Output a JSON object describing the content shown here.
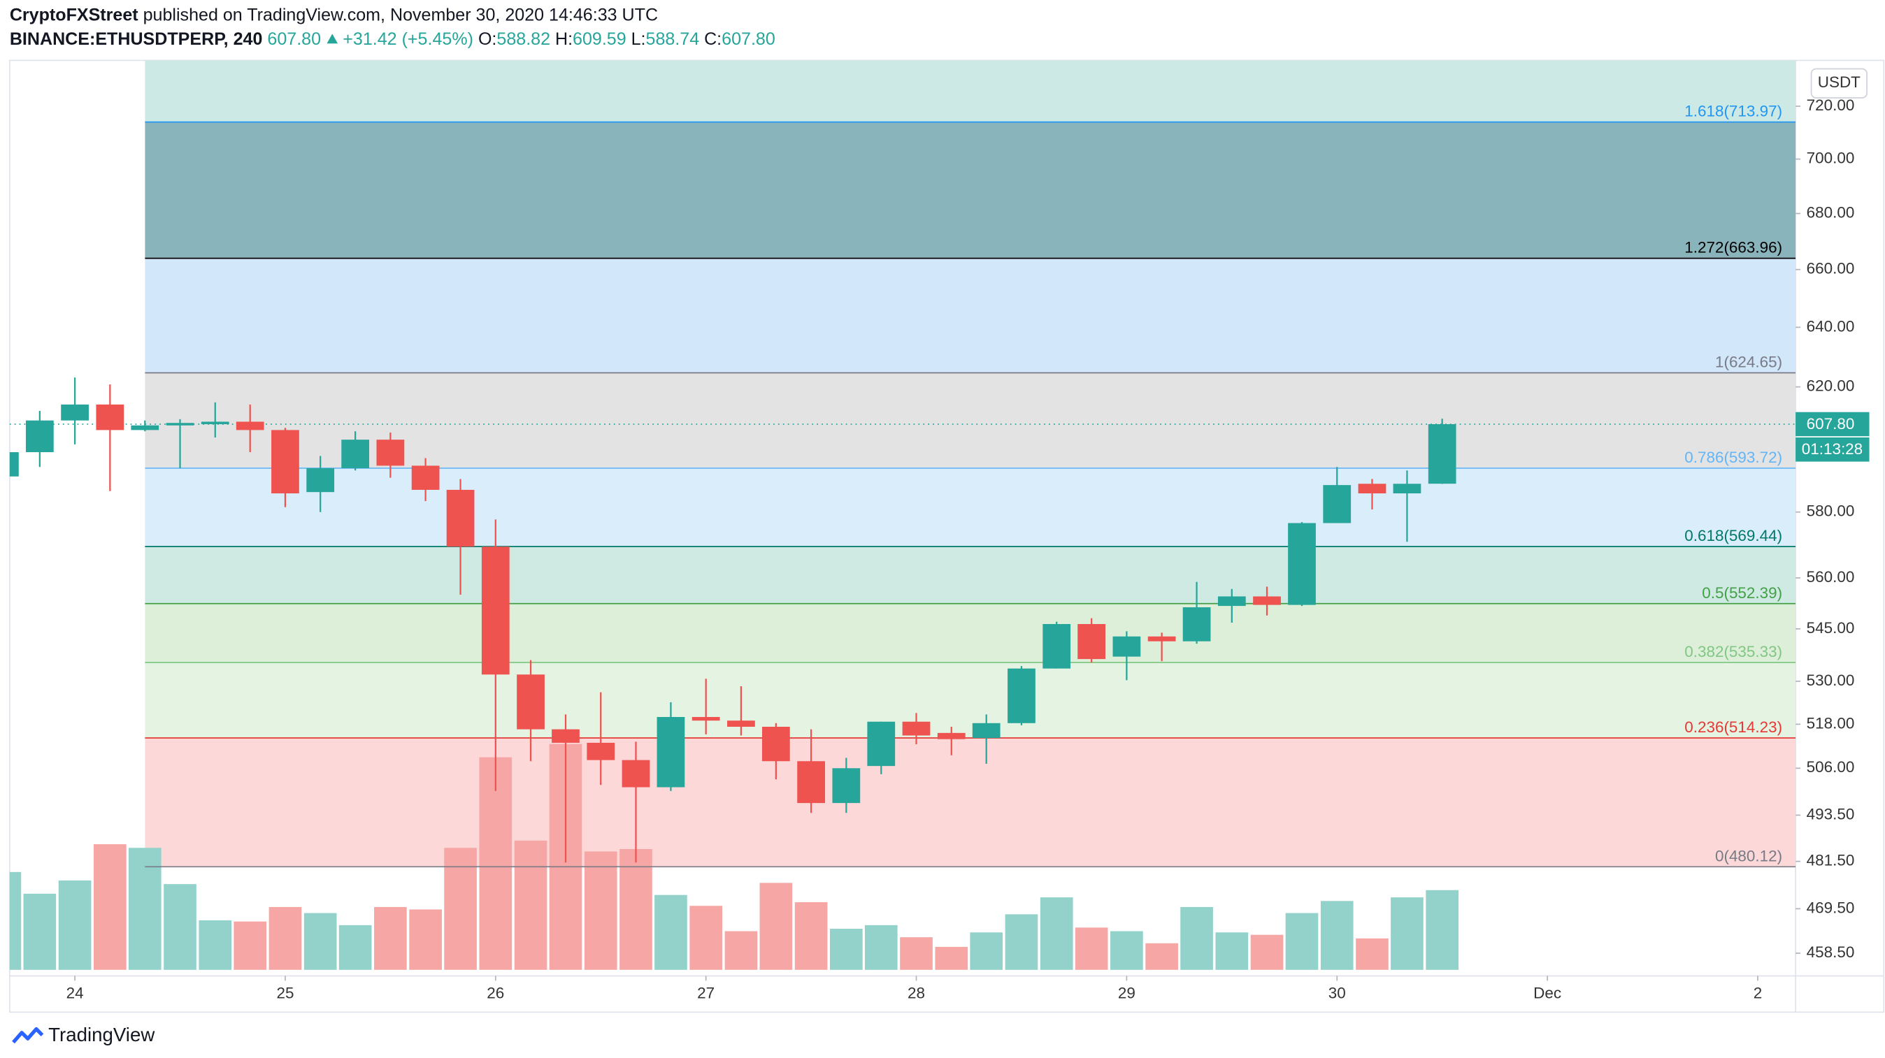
{
  "header": {
    "author": "CryptoFXStreet",
    "published": "published on TradingView.com, November 30, 2020 14:46:33 UTC",
    "symbol": "BINANCE:ETHUSDTPERP, 240",
    "last": "607.80",
    "change": "+31.42 (+5.45%)",
    "ohlc": [
      {
        "key": "O:",
        "value": "588.82"
      },
      {
        "key": "H:",
        "value": "609.59"
      },
      {
        "key": "L:",
        "value": "588.74"
      },
      {
        "key": "C:",
        "value": "607.80"
      }
    ]
  },
  "chart_data": {
    "type": "candlestick",
    "currency": "USDT",
    "countdown": "01:13:28",
    "x": [
      23.667,
      23.833,
      24,
      24.167,
      24.333,
      24.5,
      24.667,
      24.833,
      25,
      25.167,
      25.333,
      25.5,
      25.667,
      25.833,
      26,
      26.167,
      26.333,
      26.5,
      26.667,
      26.833,
      27,
      27.167,
      27.333,
      27.5,
      27.667,
      27.833,
      28,
      28.167,
      28.333,
      28.5,
      28.667,
      28.833,
      29,
      29.167,
      29.333,
      29.5,
      29.667,
      29.833,
      30,
      30.167,
      30.333,
      30.5
    ],
    "open": [
      591.1,
      598.8,
      609.0,
      614.2,
      605.9,
      607.4,
      607.8,
      608.6,
      605.9,
      586.2,
      593.7,
      602.8,
      594.5,
      586.9,
      569.4,
      531.9,
      516.6,
      512.9,
      508.2,
      500.9,
      520.0,
      519.0,
      517.3,
      507.9,
      496.7,
      506.6,
      518.7,
      515.6,
      514.2,
      518.3,
      533.6,
      546.4,
      537.0,
      542.8,
      541.4,
      551.7,
      554.5,
      552.0,
      576.6,
      588.8,
      585.8,
      588.82
    ],
    "high": [
      599.8,
      612.1,
      623.1,
      620.8,
      609.0,
      609.4,
      614.9,
      614.2,
      606.6,
      597.6,
      605.5,
      605.1,
      596.9,
      590.3,
      577.7,
      536.0,
      520.7,
      526.9,
      513.2,
      524.1,
      530.7,
      528.6,
      518.3,
      516.6,
      508.8,
      518.7,
      521.1,
      517.3,
      520.7,
      534.3,
      547.1,
      548.1,
      544.3,
      543.9,
      558.8,
      556.7,
      557.4,
      576.9,
      594.1,
      590.3,
      593.0,
      609.59
    ],
    "low": [
      590.7,
      594.1,
      601.3,
      586.5,
      605.5,
      593.7,
      603.5,
      598.8,
      581.5,
      580.0,
      593.0,
      590.7,
      583.4,
      555.0,
      499.9,
      507.9,
      481.2,
      501.5,
      481.2,
      499.9,
      515.2,
      514.9,
      503.0,
      494.1,
      494.1,
      504.4,
      512.5,
      509.5,
      507.2,
      517.7,
      533.6,
      535.3,
      530.3,
      535.7,
      540.7,
      546.8,
      548.9,
      551.7,
      576.6,
      580.8,
      570.9,
      588.74
    ],
    "close": [
      598.8,
      609.0,
      614.2,
      605.9,
      607.4,
      608.2,
      608.6,
      605.9,
      585.8,
      593.7,
      602.8,
      594.5,
      586.9,
      569.4,
      531.9,
      516.6,
      512.9,
      508.2,
      500.9,
      520.0,
      519.0,
      517.3,
      507.9,
      496.7,
      506.0,
      518.7,
      514.9,
      513.9,
      518.3,
      533.6,
      546.4,
      536.3,
      542.8,
      541.4,
      551.3,
      554.5,
      552.0,
      576.6,
      588.4,
      585.8,
      588.8,
      607.8
    ],
    "volume": [
      81,
      63,
      74,
      104,
      101,
      71,
      41,
      40,
      52,
      47,
      37,
      52,
      50,
      101,
      176,
      107,
      187,
      98,
      100,
      62,
      53,
      32,
      72,
      56,
      34,
      37,
      27,
      19,
      31,
      46,
      60,
      35,
      32,
      22,
      52,
      31,
      29,
      47,
      57,
      26,
      60,
      66
    ],
    "up_color": "#26a69a",
    "down_color": "#ef5350",
    "volume_up_color": "#92d2ca",
    "volume_down_color": "#f6a7a5",
    "log_scale": true,
    "grid": false,
    "xlim": [
      23.69,
      32.18
    ],
    "xticks": [
      24,
      25,
      26,
      27,
      28,
      29,
      30,
      {
        "value": 31,
        "label": "Dec"
      },
      {
        "value": 32,
        "label": "2"
      }
    ],
    "ylim": [
      453.0,
      737.8
    ],
    "yticks": [
      {
        "value": 720,
        "label": "720.00"
      },
      {
        "value": 700,
        "label": "700.00"
      },
      {
        "value": 680,
        "label": "680.00"
      },
      {
        "value": 660,
        "label": "660.00"
      },
      {
        "value": 640,
        "label": "640.00"
      },
      {
        "value": 620,
        "label": "620.00"
      },
      {
        "value": 580,
        "label": "580.00"
      },
      {
        "value": 560,
        "label": "560.00"
      },
      {
        "value": 545,
        "label": "545.00"
      },
      {
        "value": 530,
        "label": "530.00"
      },
      {
        "value": 518,
        "label": "518.00"
      },
      {
        "value": 506,
        "label": "506.00"
      },
      {
        "value": 493.5,
        "label": "493.50"
      },
      {
        "value": 481.5,
        "label": "481.50"
      },
      {
        "value": 469.5,
        "label": "469.50"
      },
      {
        "value": 458.5,
        "label": "458.50"
      }
    ],
    "fib_levels": [
      {
        "label": "1.618(713.97)",
        "value": 713.97,
        "line_color": "#2196f3",
        "fill_color": "#cde9e5"
      },
      {
        "label": "1.272(663.96)",
        "value": 663.96,
        "line_color": "#000000",
        "fill_color": "#8ab4bb"
      },
      {
        "label": "1(624.65)",
        "value": 624.65,
        "line_color": "#787b86",
        "fill_color": "#d3e7fb"
      },
      {
        "label": "0.786(593.72)",
        "value": 593.72,
        "line_color": "#64b5f6",
        "fill_color": "#e3e3e4"
      },
      {
        "label": "0.618(569.44)",
        "value": 569.44,
        "line_color": "#00796b",
        "fill_color": "#daedfb"
      },
      {
        "label": "0.5(552.39)",
        "value": 552.39,
        "line_color": "#43a047",
        "fill_color": "#cfe9e3"
      },
      {
        "label": "0.382(535.33)",
        "value": 535.33,
        "line_color": "#81c784",
        "fill_color": "#ddefd9"
      },
      {
        "label": "0.236(514.23)",
        "value": 514.23,
        "line_color": "#e53935",
        "fill_color": "#e5f3e2"
      },
      {
        "label": "0(480.12)",
        "value": 480.12,
        "line_color": "#787b86",
        "fill_color": "#fcd8d8"
      }
    ]
  },
  "footer": {
    "brand": "TradingView"
  }
}
